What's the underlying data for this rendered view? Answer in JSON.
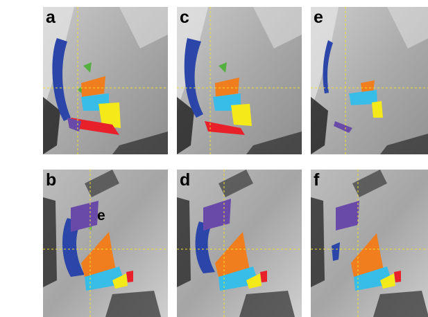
{
  "panels": [
    {
      "label": "a"
    },
    {
      "label": "c"
    },
    {
      "label": "e"
    },
    {
      "label": "b"
    },
    {
      "label": "d"
    },
    {
      "label": "f"
    }
  ],
  "annotations": {
    "panel_b_marker": "e"
  },
  "colors": {
    "blue": "#2b46a8",
    "purple": "#6a4aa8",
    "green": "#55b040",
    "orange": "#f07d1e",
    "cyan": "#38bde8",
    "yellow": "#f4ea1a",
    "red": "#e8202a",
    "crosshair": "#f2e22a"
  }
}
